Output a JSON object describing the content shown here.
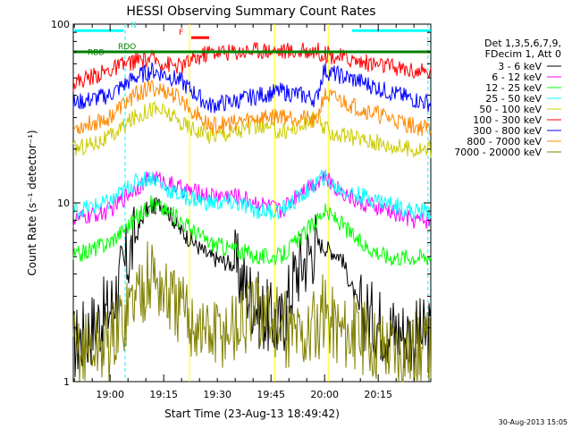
{
  "chart_data": {
    "type": "line",
    "title": "HESSI Observing Summary Count Rates",
    "xlabel": "Start Time (23-Aug-13 18:49:42)",
    "ylabel": "Count Rate (s⁻¹ detector⁻¹)",
    "yscale": "log",
    "ylim": [
      1,
      100
    ],
    "y_ticks": [
      "1",
      "10",
      "100"
    ],
    "x_range_minutes": [
      0,
      100
    ],
    "x_ticks": [
      {
        "label": "19:00",
        "minute": 10.3
      },
      {
        "label": "19:15",
        "minute": 25.3
      },
      {
        "label": "19:30",
        "minute": 40.3
      },
      {
        "label": "19:45",
        "minute": 55.3
      },
      {
        "label": "20:00",
        "minute": 70.3
      },
      {
        "label": "20:15",
        "minute": 85.3
      }
    ],
    "legend_header": [
      "Det 1,3,5,6,7,9,",
      "FDecim 1, Att 0"
    ],
    "legend_position": "right, outside plot",
    "series": [
      {
        "name": "3 - 6 keV",
        "color": "#000000",
        "x": [
          0,
          10,
          17,
          20,
          25,
          30,
          38,
          45,
          52,
          58,
          62,
          68,
          75,
          80,
          88,
          95,
          100
        ],
        "y": [
          1.6,
          2.5,
          6,
          9,
          10,
          7,
          5,
          4.5,
          2.5,
          2,
          4,
          6,
          5,
          2.5,
          2,
          1.8,
          1.8
        ]
      },
      {
        "name": "6 - 12 keV",
        "color": "#ff00ff",
        "x": [
          0,
          10,
          17,
          22,
          26,
          30,
          38,
          45,
          52,
          58,
          64,
          68,
          70,
          74,
          80,
          88,
          95,
          100
        ],
        "y": [
          8,
          9,
          12,
          14,
          13,
          12,
          11,
          11,
          10,
          9,
          12,
          13,
          14,
          12,
          10,
          9,
          8,
          8
        ]
      },
      {
        "name": "12 - 25 keV",
        "color": "#00ff00",
        "x": [
          0,
          10,
          17,
          22,
          26,
          30,
          38,
          45,
          52,
          58,
          64,
          68,
          70,
          74,
          80,
          88,
          95,
          100
        ],
        "y": [
          5,
          6,
          8,
          10,
          9,
          8,
          6,
          5.5,
          5,
          5,
          6.5,
          8,
          9,
          8,
          6,
          5,
          5,
          5
        ]
      },
      {
        "name": "25 - 50 keV",
        "color": "#00ffff",
        "x": [
          0,
          10,
          17,
          22,
          26,
          30,
          38,
          45,
          52,
          58,
          64,
          68,
          70,
          74,
          80,
          88,
          95,
          100
        ],
        "y": [
          9,
          10,
          13,
          14,
          12,
          11,
          10,
          10,
          9,
          9,
          11,
          13,
          14,
          12,
          11,
          10,
          9,
          9
        ]
      },
      {
        "name": "50 - 100 keV",
        "color": "#cccc00",
        "x": [
          0,
          10,
          17,
          22,
          26,
          30,
          38,
          45,
          52,
          58,
          64,
          68,
          70,
          74,
          80,
          88,
          95,
          100
        ],
        "y": [
          20,
          23,
          30,
          34,
          32,
          28,
          24,
          25,
          27,
          25,
          27,
          30,
          26,
          24,
          23,
          21,
          20,
          20
        ]
      },
      {
        "name": "100 - 300 keV",
        "color": "#ff0000",
        "x": [
          0,
          10,
          17,
          22,
          26,
          30,
          38,
          45,
          52,
          58,
          64,
          68,
          70,
          74,
          80,
          88,
          95,
          100
        ],
        "y": [
          47,
          55,
          62,
          64,
          60,
          58,
          70,
          70,
          72,
          71,
          70,
          72,
          68,
          66,
          62,
          58,
          55,
          53
        ]
      },
      {
        "name": "300 - 800 keV",
        "color": "#0000ff",
        "x": [
          0,
          10,
          17,
          22,
          26,
          30,
          38,
          45,
          52,
          58,
          64,
          68,
          70,
          74,
          80,
          88,
          95,
          100
        ],
        "y": [
          36,
          40,
          50,
          55,
          52,
          48,
          35,
          37,
          40,
          42,
          40,
          38,
          55,
          52,
          48,
          42,
          38,
          36
        ]
      },
      {
        "name": "800 - 7000 keV",
        "color": "#ff8800",
        "x": [
          0,
          10,
          17,
          22,
          26,
          30,
          38,
          45,
          52,
          58,
          64,
          68,
          70,
          74,
          80,
          88,
          95,
          100
        ],
        "y": [
          26,
          30,
          40,
          44,
          42,
          38,
          27,
          28,
          30,
          31,
          30,
          28,
          40,
          38,
          34,
          30,
          27,
          26
        ]
      },
      {
        "name": "7000 - 20000 keV",
        "color": "#808000",
        "x": [
          0,
          10,
          17,
          22,
          26,
          30,
          38,
          45,
          52,
          58,
          64,
          68,
          70,
          74,
          80,
          88,
          95,
          100
        ],
        "y": [
          1.5,
          1.6,
          3,
          4,
          3,
          2.5,
          1.8,
          2,
          2.5,
          2,
          1.8,
          2,
          2.5,
          2,
          1.8,
          1.6,
          1.5,
          1.5
        ]
      }
    ],
    "status_bars": [
      {
        "label": "N",
        "color": "#00ffff",
        "y": 92,
        "segments": [
          [
            0,
            14
          ],
          [
            78,
            100
          ]
        ]
      },
      {
        "label": "F",
        "color": "#ff0000",
        "y": 84,
        "segments": [
          [
            33,
            38
          ]
        ]
      },
      {
        "label": "RDO",
        "color": "#008000",
        "y": 70,
        "segments": [
          [
            0,
            100
          ]
        ]
      },
      {
        "label": "RBB",
        "color": "#008000",
        "y": 65,
        "segments": []
      }
    ],
    "vertical_markers": [
      {
        "minute": 14.5,
        "color": "#00ffff",
        "style": "dashed"
      },
      {
        "minute": 99.2,
        "color": "#00ffff",
        "style": "dashed"
      },
      {
        "minute": 32.5,
        "color": "#ffff00",
        "style": "solid"
      },
      {
        "minute": 56.3,
        "color": "#ffff00",
        "style": "solid"
      },
      {
        "minute": 71.3,
        "color": "#ffff00",
        "style": "solid"
      }
    ],
    "grid": false
  },
  "footer": {
    "date_stamp": "30-Aug-2013 15:05"
  }
}
